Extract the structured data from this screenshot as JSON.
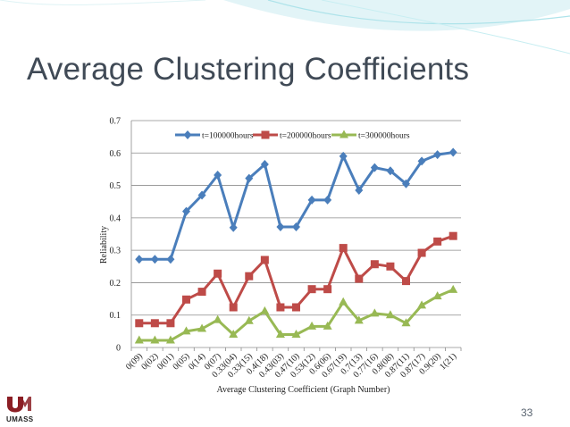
{
  "slide": {
    "title": "Average Clustering Coefficients",
    "page_number": "33",
    "logo_text": "UMASS"
  },
  "colors": {
    "title": "#404a56",
    "series_blue": "#4a7ebb",
    "series_red": "#be4b48",
    "series_green": "#98b954",
    "accent_teal": "#7fd3dc"
  },
  "chart_data": {
    "type": "line",
    "title": "",
    "xlabel": "Average Clustering Coefficient (Graph Number)",
    "ylabel": "Reliability",
    "ylim": [
      0,
      0.7
    ],
    "yticks": [
      "0",
      "0.1",
      "0.2",
      "0.3",
      "0.4",
      "0.5",
      "0.6",
      "0.7"
    ],
    "grid": true,
    "legend": "top",
    "categories": [
      "0(09)",
      "0(02)",
      "0(01)",
      "0(05)",
      "0(14)",
      "0(07)",
      "0.33(04)",
      "0.33(15)",
      "0.4(18)",
      "0.43(03)",
      "0.47(10)",
      "0.53(12)",
      "0.6(06)",
      "0.67(19)",
      "0.7(13)",
      "0.77(16)",
      "0.8(08)",
      "0.87(11)",
      "0.87(17)",
      "0.9(20)",
      "1(21)"
    ],
    "series": [
      {
        "name": "t=100000hours",
        "color": "#4a7ebb",
        "marker": "diamond",
        "values": [
          0.272,
          0.272,
          0.272,
          0.42,
          0.47,
          0.532,
          0.37,
          0.522,
          0.565,
          0.372,
          0.372,
          0.455,
          0.455,
          0.59,
          0.485,
          0.555,
          0.545,
          0.505,
          0.575,
          0.595,
          0.602
        ]
      },
      {
        "name": "t=200000hours",
        "color": "#be4b48",
        "marker": "square",
        "values": [
          0.075,
          0.075,
          0.075,
          0.148,
          0.172,
          0.228,
          0.124,
          0.22,
          0.27,
          0.124,
          0.124,
          0.18,
          0.18,
          0.307,
          0.212,
          0.257,
          0.25,
          0.205,
          0.292,
          0.327,
          0.344
        ]
      },
      {
        "name": "t=300000hours",
        "color": "#98b954",
        "marker": "triangle",
        "values": [
          0.022,
          0.022,
          0.022,
          0.05,
          0.058,
          0.085,
          0.04,
          0.082,
          0.112,
          0.04,
          0.04,
          0.065,
          0.065,
          0.14,
          0.083,
          0.105,
          0.1,
          0.075,
          0.13,
          0.158,
          0.178
        ]
      }
    ]
  }
}
